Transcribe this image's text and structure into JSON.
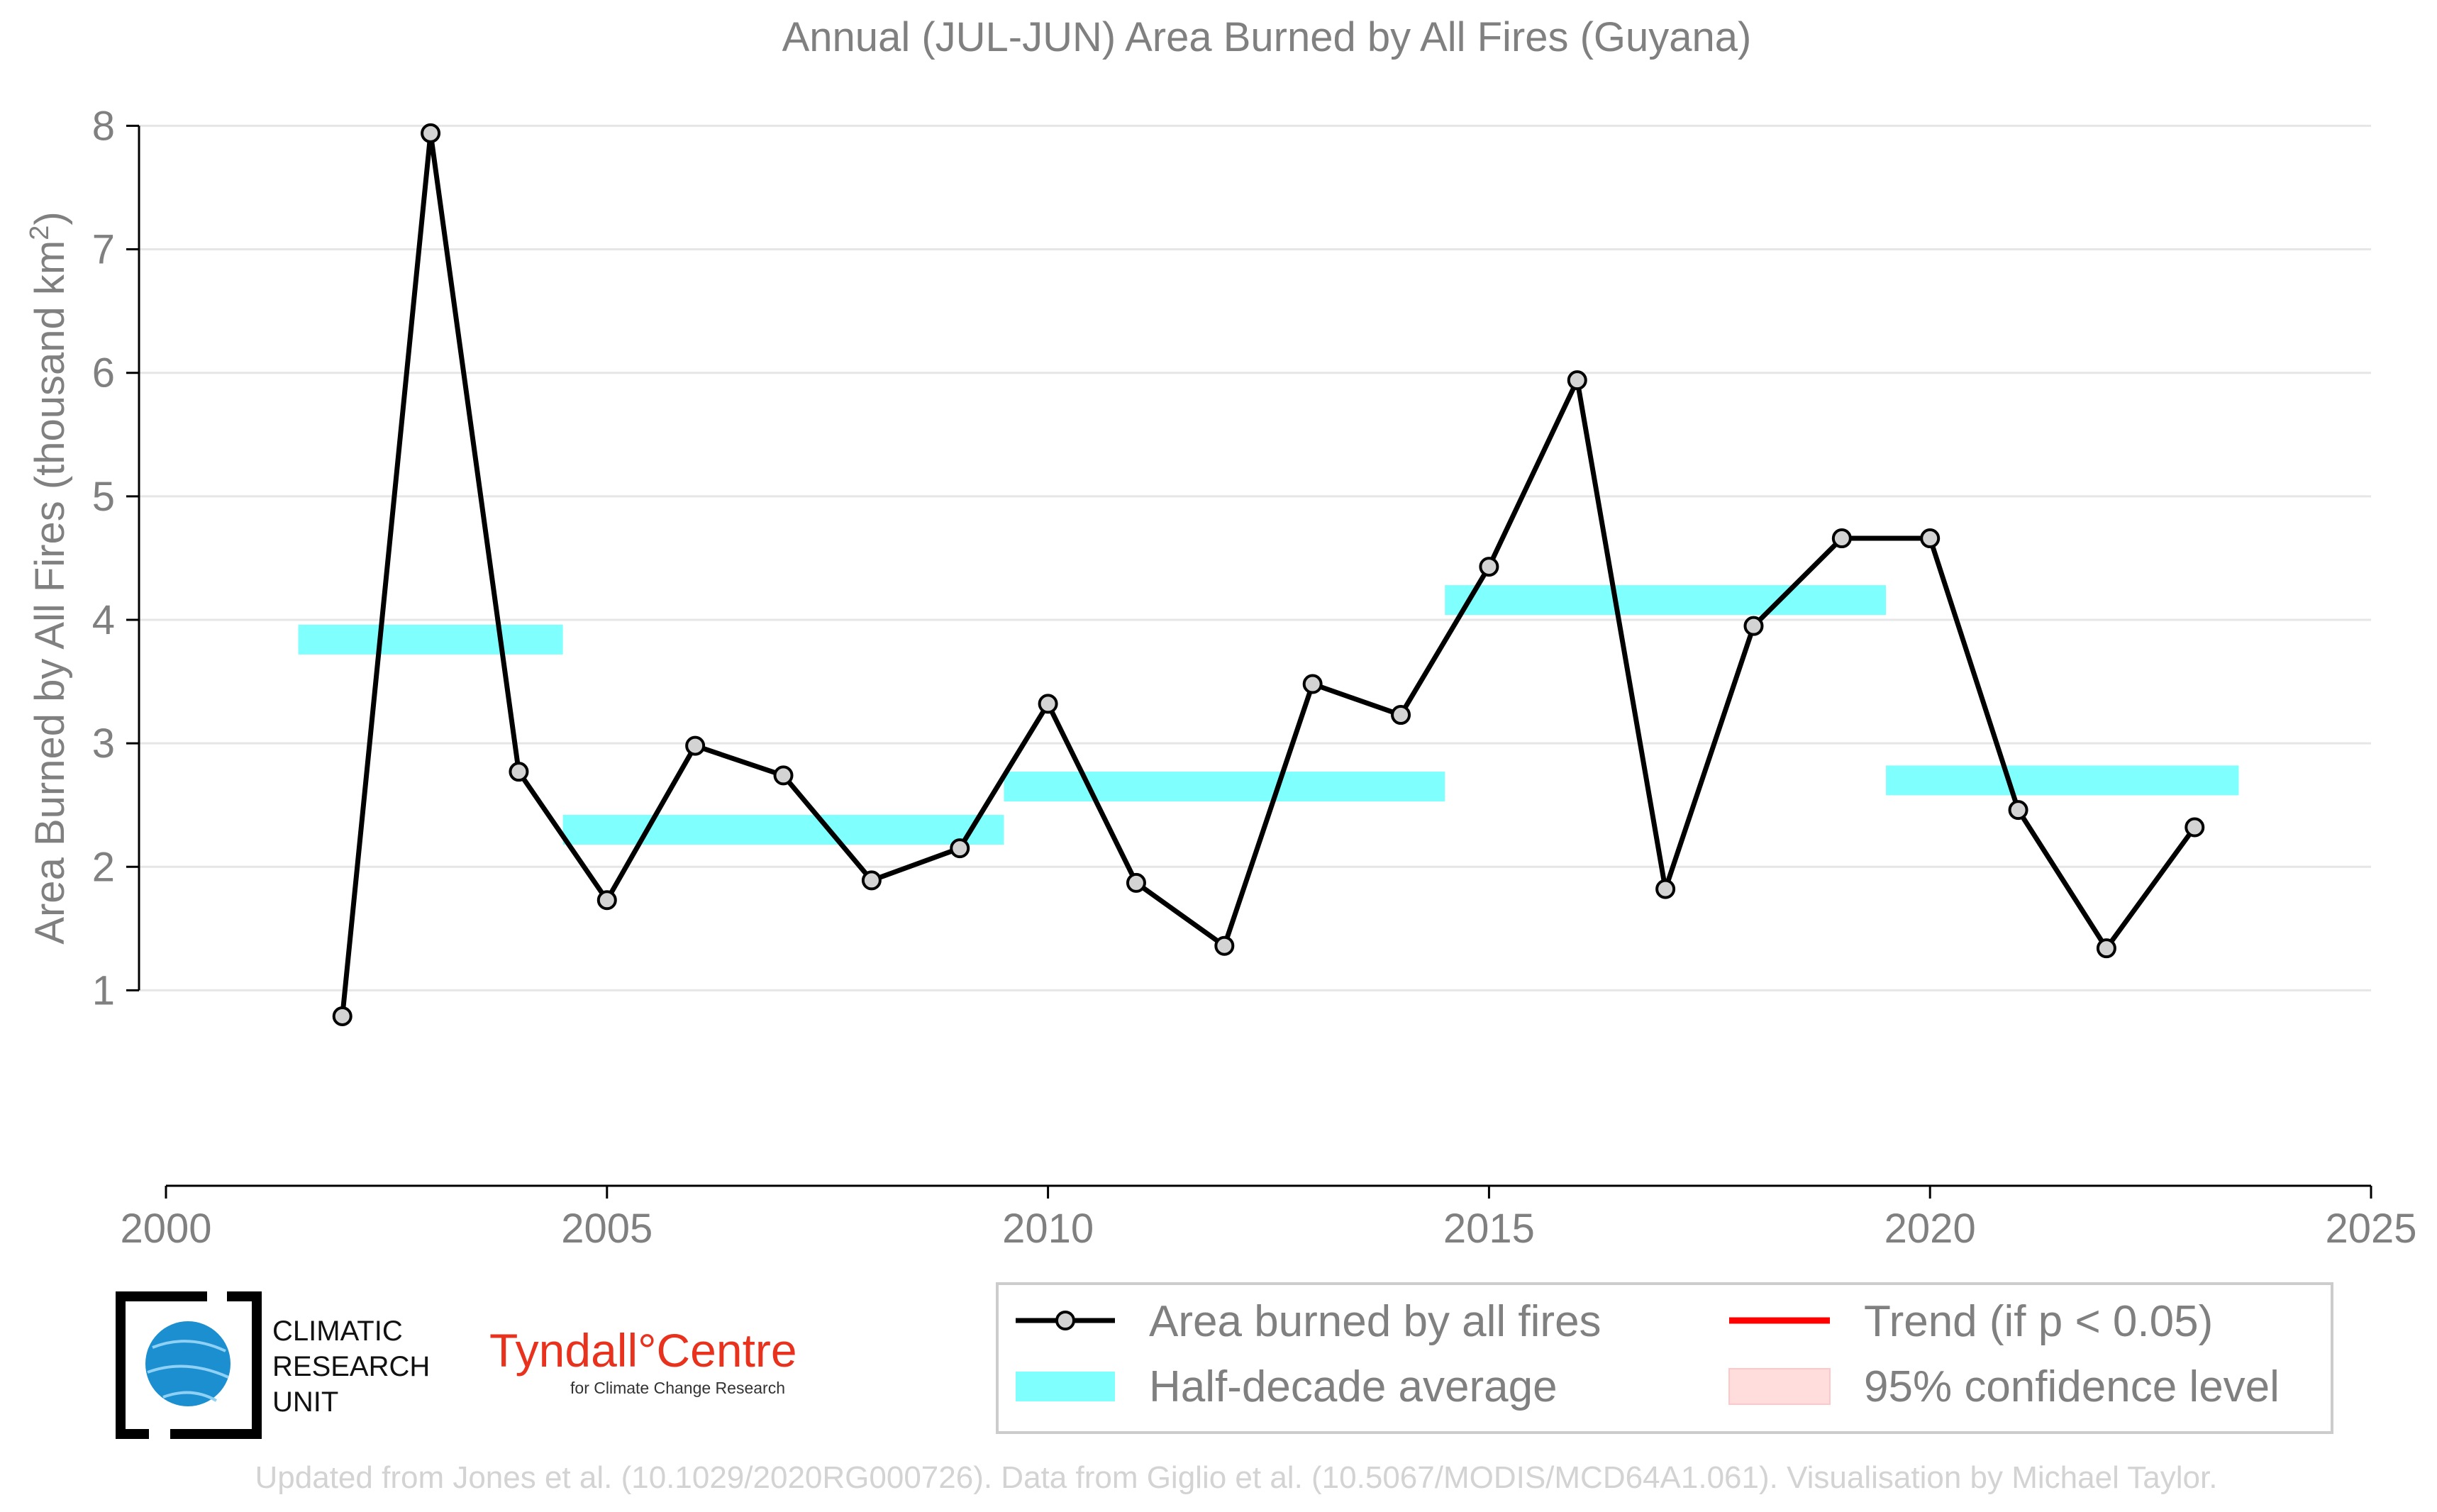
{
  "chart_data": {
    "type": "line",
    "title": "Annual (JUL-JUN) Area Burned by All Fires (Guyana)",
    "ylabel_prefix": "Area Burned by All Fires (thousand km",
    "ylabel_sup": "2",
    "ylabel_suffix": ")",
    "xlim": [
      2000,
      2025
    ],
    "ylim": [
      0.25,
      8.1
    ],
    "x_ticks": [
      2000,
      2005,
      2010,
      2015,
      2020,
      2025
    ],
    "y_ticks": [
      1,
      2,
      3,
      4,
      5,
      6,
      7,
      8
    ],
    "grid": "horizontal",
    "series": [
      {
        "name": "Area burned by all fires",
        "color": "#000000",
        "marker_fill": "#d3d3d3",
        "x": [
          2002,
          2003,
          2004,
          2005,
          2006,
          2007,
          2008,
          2009,
          2010,
          2011,
          2012,
          2013,
          2014,
          2015,
          2016,
          2017,
          2018,
          2019,
          2020,
          2021,
          2022,
          2023
        ],
        "y": [
          0.79,
          7.94,
          2.77,
          1.73,
          2.98,
          2.74,
          1.89,
          2.15,
          3.32,
          1.87,
          1.36,
          3.48,
          3.23,
          4.43,
          5.94,
          1.82,
          3.95,
          4.66,
          4.66,
          2.46,
          1.34,
          2.32
        ]
      }
    ],
    "half_decade_average": {
      "name": "Half-decade average",
      "color": "#80ffff",
      "segments": [
        {
          "x_start": 2001.5,
          "x_end": 2004.5,
          "y": 3.84
        },
        {
          "x_start": 2004.5,
          "x_end": 2009.5,
          "y": 2.3
        },
        {
          "x_start": 2009.5,
          "x_end": 2014.5,
          "y": 2.65
        },
        {
          "x_start": 2014.5,
          "x_end": 2019.5,
          "y": 4.16
        },
        {
          "x_start": 2019.5,
          "x_end": 2023.5,
          "y": 2.7
        }
      ]
    },
    "legend": {
      "placement": "bottom-right",
      "items": [
        {
          "label": "Area burned by all fires",
          "symbol": "line-marker",
          "color": "#000000"
        },
        {
          "label": "Trend (if p < 0.05)",
          "symbol": "line",
          "color": "#ff0000"
        },
        {
          "label": "Half-decade average",
          "symbol": "band",
          "color": "#80ffff"
        },
        {
          "label": "95% confidence level",
          "symbol": "band",
          "color": "#ffdddd"
        }
      ]
    }
  },
  "logos": {
    "cru_line1": "CLIMATIC",
    "cru_line2": "RESEARCH",
    "cru_line3": "UNIT",
    "tyndall_main": "Tyndall°Centre",
    "tyndall_sub": "for Climate Change Research"
  },
  "footer": "Updated from Jones et al. (10.1029/2020RG000726). Data from Giglio et al. (10.5067/MODIS/MCD64A1.061). Visualisation by Michael Taylor."
}
